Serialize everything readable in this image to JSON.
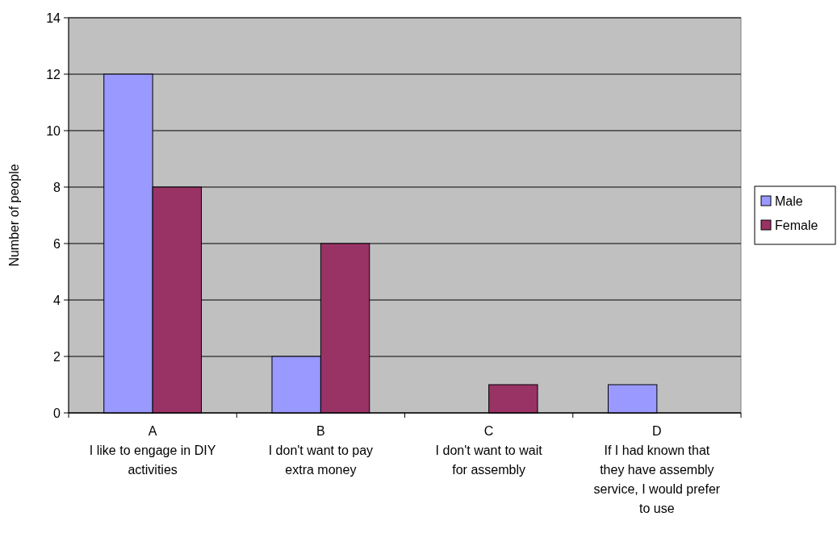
{
  "chart_data": {
    "type": "bar",
    "ylabel": "Number of people",
    "categories": [
      "A\nI like to engage in DIY activities",
      "B\nI don't want to pay extra money",
      "C\nI don't want to wait for assembly",
      "D\nIf I had known that they have assembly service, I would prefer to use"
    ],
    "series": [
      {
        "name": "Male",
        "color": "#9999ff",
        "values": [
          12,
          2,
          0,
          1
        ]
      },
      {
        "name": "Female",
        "color": "#993366",
        "values": [
          8,
          6,
          1,
          0
        ]
      }
    ],
    "ylim": [
      0,
      14
    ],
    "yticks": [
      0,
      2,
      4,
      6,
      8,
      10,
      12,
      14
    ],
    "grid": "y",
    "legend": "right"
  }
}
